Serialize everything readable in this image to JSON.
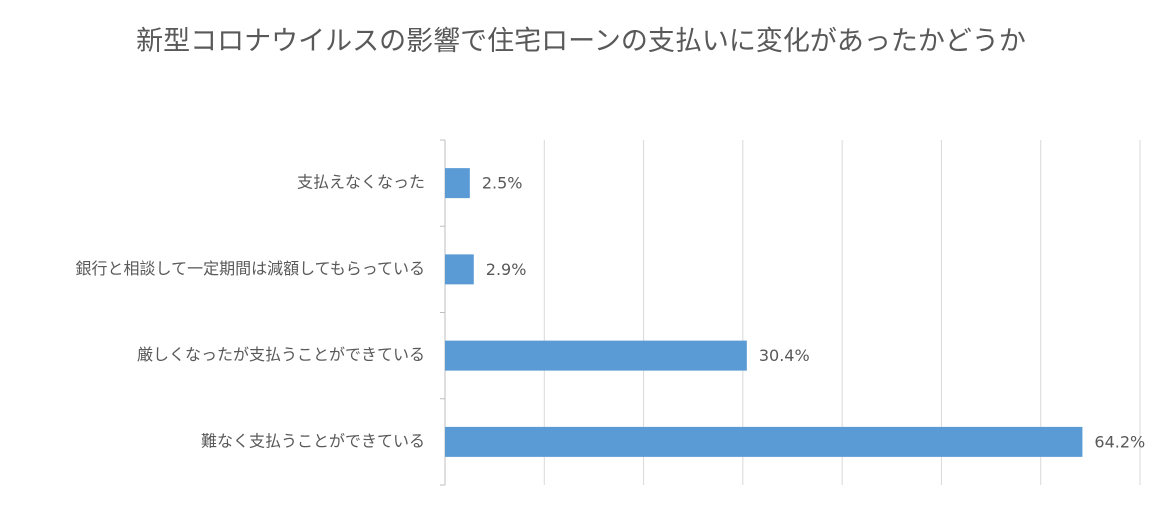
{
  "chart_data": {
    "type": "barh",
    "title": "新型コロナウイルスの影響で住宅ローンの支払いに変化があったかどうか",
    "categories": [
      "支払えなくなった",
      "銀行と相談して一定期間は減額してもらっている",
      "厳しくなったが支払うことができている",
      "難なく支払うことができている"
    ],
    "values": [
      2.5,
      2.9,
      30.4,
      64.2
    ],
    "value_labels": [
      "2.5%",
      "2.9%",
      "30.4%",
      "64.2%"
    ],
    "color": "#5b9bd5",
    "xlim": [
      0,
      70
    ],
    "xticks": [
      0,
      10,
      20,
      30,
      40,
      50,
      60,
      70
    ],
    "grid": true
  }
}
